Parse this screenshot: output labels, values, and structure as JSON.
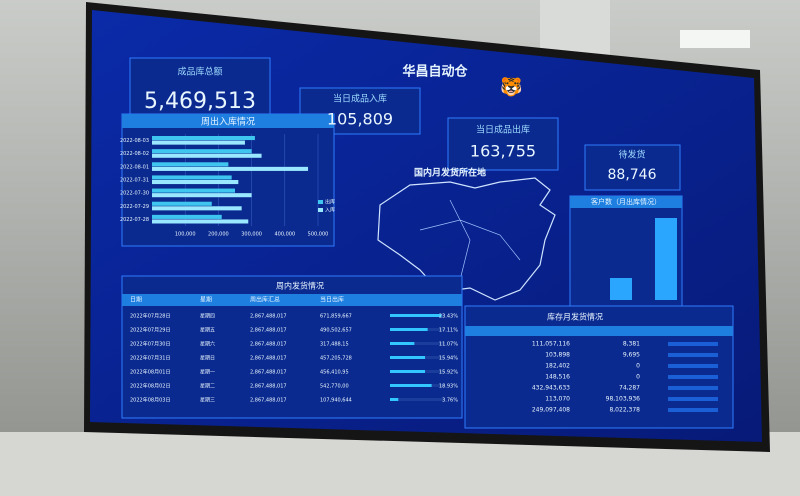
{
  "screen_title": "华昌自动仓",
  "kpis": [
    {
      "label": "成品库总额",
      "value": "5,469,513"
    },
    {
      "label": "当日成品入库",
      "value": "105,809"
    },
    {
      "label": "当日成品出库",
      "value": "163,755"
    },
    {
      "label": "待发货",
      "value": "88,746"
    }
  ],
  "chart_data": {
    "type": "bar",
    "title": "周出入库情况",
    "categories": [
      "2022-08-03",
      "2022-08-02",
      "2022-08-01",
      "2022-07-31",
      "2022-07-30",
      "2022-07-29",
      "2022-07-28"
    ],
    "series": [
      {
        "name": "出库",
        "color": "#3ec6f0",
        "values": [
          310000,
          300000,
          230000,
          240000,
          250000,
          180000,
          210000
        ]
      },
      {
        "name": "入库",
        "color": "#9ae8ff",
        "values": [
          280000,
          330000,
          470000,
          260000,
          300000,
          270000,
          290000
        ]
      }
    ],
    "xlim": [
      0,
      500000
    ],
    "xticks": [
      {
        "value": 100000,
        "label": "100,000"
      },
      {
        "value": 200000,
        "label": "200,000"
      },
      {
        "value": 300000,
        "label": "300,000"
      },
      {
        "value": 400000,
        "label": "400,000"
      },
      {
        "value": 500000,
        "label": "500,000"
      }
    ]
  },
  "map_title": "国内月发货所在地",
  "customer_title": "客户数（月出库情况）",
  "weekly_table": {
    "title": "周内发货情况",
    "columns": [
      "日期",
      "星期",
      "周出库汇总",
      "当日出库"
    ],
    "rows": [
      [
        "2022年07月28日",
        "星期四",
        "2,867,488,017",
        "671,859,667"
      ],
      [
        "2022年07月29日",
        "星期五",
        "2,867,488,017",
        "490,502,657"
      ],
      [
        "2022年07月30日",
        "星期六",
        "2,867,488,017",
        "317,488,15"
      ],
      [
        "2022年07月31日",
        "星期日",
        "2,867,488,017",
        "457,205,728"
      ],
      [
        "2022年08月01日",
        "星期一",
        "2,867,488,017",
        "456,410,95"
      ],
      [
        "2022年08月02日",
        "星期二",
        "2,867,488,017",
        "542,770,00"
      ],
      [
        "2022年08月03日",
        "星期三",
        "2,867,488,017",
        "107,940,644"
      ]
    ],
    "pct": [
      23.43,
      17.11,
      11.07,
      15.94,
      15.92,
      18.93,
      3.76
    ],
    "pct_labels": [
      "23.43%",
      "17.11%",
      "11.07%",
      "15.94%",
      "15.92%",
      "18.93%",
      "3.76%"
    ]
  },
  "stock_table": {
    "title": "库存月发货情况",
    "rows": [
      [
        "111,057,116",
        "8,381"
      ],
      [
        "103,898",
        "9,695"
      ],
      [
        "182,402",
        "0"
      ],
      [
        "148,516",
        "0"
      ],
      [
        "432,943,633",
        "74,287"
      ],
      [
        "113,070",
        "98,103,936"
      ],
      [
        "249,097,408",
        "8,022,378"
      ]
    ]
  }
}
